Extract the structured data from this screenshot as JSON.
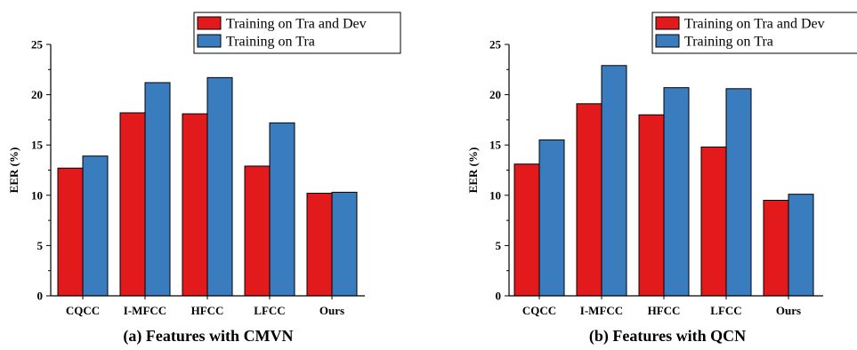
{
  "colors": {
    "tra_and_dev": "#e31a1c",
    "tra": "#3a7dbf"
  },
  "chart_data": [
    {
      "type": "bar",
      "caption": "(a) Features with CMVN",
      "ylabel": "EER (%)",
      "ylim": [
        0,
        25
      ],
      "yticks": [
        0,
        5,
        10,
        15,
        20,
        25
      ],
      "categories": [
        "CQCC",
        "I-MFCC",
        "HFCC",
        "LFCC",
        "Ours"
      ],
      "series": [
        {
          "name": "Training on Tra and Dev",
          "values": [
            12.7,
            18.2,
            18.1,
            12.9,
            10.2
          ]
        },
        {
          "name": "Training on Tra",
          "values": [
            13.9,
            21.2,
            21.7,
            17.2,
            10.3
          ]
        }
      ],
      "legend": "top-right",
      "grid": false
    },
    {
      "type": "bar",
      "caption": "(b) Features with QCN",
      "ylabel": "EER (%)",
      "ylim": [
        0,
        25
      ],
      "yticks": [
        0,
        5,
        10,
        15,
        20,
        25
      ],
      "categories": [
        "CQCC",
        "I-MFCC",
        "HFCC",
        "LFCC",
        "Ours"
      ],
      "series": [
        {
          "name": "Training on Tra and Dev",
          "values": [
            13.1,
            19.1,
            18.0,
            14.8,
            9.5
          ]
        },
        {
          "name": "Training on Tra",
          "values": [
            15.5,
            22.9,
            20.7,
            20.6,
            10.1
          ]
        }
      ],
      "legend": "top-right",
      "grid": false
    }
  ]
}
